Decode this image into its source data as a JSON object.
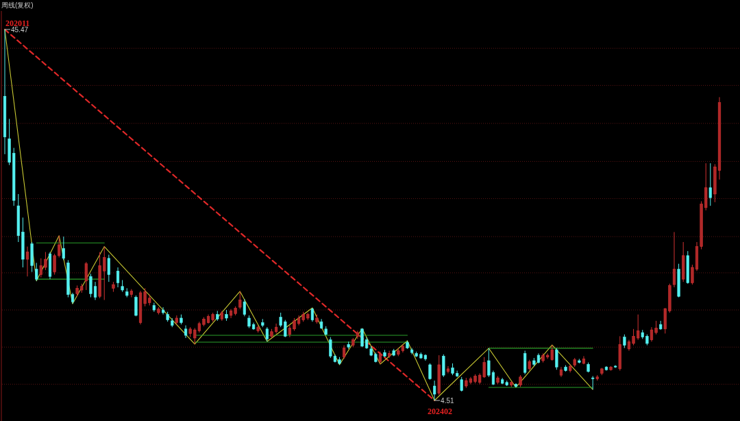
{
  "chart_data": {
    "type": "candlestick",
    "title": "周线(复权)",
    "grid": true,
    "yticks": [
      {
        "value": 6.3,
        "label": null
      },
      {
        "value": 10.4,
        "label": null
      },
      {
        "value": 14.5,
        "label": null
      },
      {
        "value": 18.6,
        "label": null
      },
      {
        "value": 22.6,
        "label": null
      },
      {
        "value": 26.8,
        "label": null
      },
      {
        "value": 30.9,
        "label": null
      },
      {
        "value": 35.1,
        "label": null
      },
      {
        "value": 39.3,
        "label": null
      },
      {
        "value": 43.4,
        "label": null
      }
    ],
    "categories": [
      null,
      null,
      null,
      null,
      null,
      null,
      null,
      null,
      null,
      null,
      null,
      null,
      null,
      null,
      null,
      null,
      null,
      null,
      null,
      null,
      null,
      null,
      null,
      null,
      null,
      null,
      null,
      null,
      null,
      null,
      null,
      null,
      null,
      null,
      null,
      null,
      null,
      null,
      null,
      null,
      null,
      null,
      null,
      null,
      null,
      null,
      null,
      null,
      null,
      null,
      null,
      null,
      null,
      null,
      null,
      null,
      null,
      null,
      null,
      null,
      null,
      null,
      null,
      null,
      null,
      null,
      null,
      null,
      null,
      null,
      null,
      null,
      null,
      null,
      null,
      null,
      null,
      null,
      null,
      null,
      null,
      null,
      null,
      null,
      null,
      null,
      null,
      null,
      null,
      null,
      null,
      null,
      null,
      null,
      null,
      null,
      null,
      null,
      null,
      null,
      null,
      null,
      null,
      null,
      null,
      null,
      null,
      null,
      null,
      null,
      null,
      null,
      null,
      null,
      null,
      null,
      null,
      null,
      null,
      null,
      null,
      null,
      null,
      null,
      null,
      null,
      null,
      null,
      null,
      null,
      null,
      null,
      null,
      null,
      null,
      null,
      null,
      null,
      null,
      null,
      null,
      null,
      null,
      null,
      null,
      null,
      null,
      null,
      null,
      null,
      null,
      null,
      null,
      null,
      null,
      null,
      null,
      null,
      null
    ],
    "ohlc": [
      [
        38.1,
        45.47,
        31.7,
        33.6
      ],
      [
        33.4,
        35.6,
        30.5,
        30.8
      ],
      [
        31.8,
        32.4,
        26.0,
        26.6
      ],
      [
        26.0,
        27.3,
        22.0,
        22.7
      ],
      [
        23.1,
        24.7,
        19.2,
        20.1
      ],
      [
        20.1,
        21.5,
        18.2,
        20.9
      ],
      [
        21.8,
        22.0,
        18.7,
        19.4
      ],
      [
        19.0,
        19.7,
        17.7,
        17.9
      ],
      [
        18.4,
        20.2,
        18.1,
        19.4
      ],
      [
        19.2,
        20.9,
        18.9,
        20.1
      ],
      [
        20.7,
        20.9,
        17.9,
        18.2
      ],
      [
        18.7,
        20.7,
        18.4,
        20.5
      ],
      [
        20.5,
        22.7,
        20.3,
        21.7
      ],
      [
        21.3,
        22.6,
        20.0,
        20.2
      ],
      [
        19.7,
        20.0,
        15.9,
        16.2
      ],
      [
        16.2,
        16.4,
        15.18,
        15.4
      ],
      [
        16.3,
        17.2,
        16.0,
        16.9
      ],
      [
        16.7,
        17.4,
        16.4,
        17.1
      ],
      [
        17.7,
        19.8,
        16.7,
        19.6
      ],
      [
        18.2,
        18.5,
        15.9,
        16.3
      ],
      [
        17.1,
        17.6,
        15.6,
        15.9
      ],
      [
        16.0,
        20.9,
        15.8,
        19.4
      ],
      [
        18.8,
        21.5,
        15.6,
        20.3
      ],
      [
        20.2,
        20.6,
        17.6,
        18.4
      ],
      [
        16.9,
        17.6,
        16.5,
        17.3
      ],
      [
        18.8,
        19.2,
        17.0,
        17.5
      ],
      [
        17.1,
        17.8,
        16.5,
        16.7
      ],
      [
        16.5,
        16.9,
        15.9,
        16.1
      ],
      [
        16.2,
        16.8,
        15.9,
        16.6
      ],
      [
        15.9,
        16.1,
        13.8,
        13.9
      ],
      [
        13.1,
        16.6,
        12.9,
        16.4
      ],
      [
        15.2,
        16.9,
        14.9,
        16.5
      ],
      [
        15.3,
        16.2,
        15.0,
        15.8
      ],
      [
        15.0,
        15.3,
        14.3,
        14.5
      ],
      [
        14.2,
        14.8,
        14.0,
        14.6
      ],
      [
        14.5,
        14.8,
        14.0,
        14.2
      ],
      [
        14.0,
        14.3,
        13.2,
        13.4
      ],
      [
        13.3,
        13.6,
        12.6,
        12.8
      ],
      [
        13.1,
        13.9,
        12.9,
        13.6
      ],
      [
        13.6,
        14.0,
        12.9,
        13.1
      ],
      [
        12.4,
        12.8,
        11.4,
        11.7
      ],
      [
        11.9,
        12.6,
        11.5,
        12.4
      ],
      [
        11.4,
        12.5,
        10.72,
        12.3
      ],
      [
        12.2,
        13.2,
        12.0,
        13.0
      ],
      [
        12.9,
        13.7,
        12.7,
        13.5
      ],
      [
        13.1,
        14.0,
        13.0,
        13.8
      ],
      [
        13.4,
        14.2,
        13.2,
        14.0
      ],
      [
        14.0,
        14.4,
        13.3,
        13.5
      ],
      [
        13.5,
        14.4,
        13.3,
        14.2
      ],
      [
        14.0,
        14.5,
        13.3,
        13.6
      ],
      [
        13.9,
        14.6,
        13.6,
        14.4
      ],
      [
        14.1,
        14.9,
        13.9,
        14.7
      ],
      [
        14.8,
        16.55,
        14.6,
        15.6
      ],
      [
        15.4,
        15.7,
        13.8,
        14.0
      ],
      [
        13.6,
        13.9,
        12.5,
        12.7
      ],
      [
        12.9,
        13.1,
        12.3,
        12.4
      ],
      [
        12.2,
        12.8,
        12.0,
        12.6
      ],
      [
        13.1,
        13.5,
        12.6,
        12.8
      ],
      [
        12.4,
        12.6,
        11.02,
        11.3
      ],
      [
        11.6,
        12.4,
        11.4,
        12.1
      ],
      [
        12.1,
        13.0,
        11.9,
        12.6
      ],
      [
        13.7,
        14.2,
        12.6,
        12.8
      ],
      [
        13.2,
        13.4,
        11.5,
        11.6
      ],
      [
        11.8,
        12.8,
        11.5,
        12.5
      ],
      [
        12.4,
        13.6,
        12.2,
        13.3
      ],
      [
        13.0,
        13.9,
        12.8,
        13.6
      ],
      [
        13.4,
        14.3,
        13.2,
        14.0
      ],
      [
        13.6,
        14.2,
        13.4,
        14.0
      ],
      [
        14.6,
        14.73,
        13.2,
        13.4
      ],
      [
        13.2,
        14.0,
        13.0,
        13.6
      ],
      [
        13.2,
        13.5,
        12.4,
        12.5
      ],
      [
        12.4,
        12.7,
        11.7,
        11.8
      ],
      [
        11.2,
        11.5,
        9.2,
        9.4
      ],
      [
        9.4,
        9.6,
        8.7,
        8.8
      ],
      [
        9.0,
        9.3,
        8.45,
        8.6
      ],
      [
        9.3,
        10.6,
        9.1,
        10.3
      ],
      [
        10.7,
        11.0,
        10.2,
        10.4
      ],
      [
        10.6,
        11.4,
        10.4,
        11.2
      ],
      [
        11.6,
        12.2,
        11.3,
        12.0
      ],
      [
        12.4,
        12.46,
        10.4,
        10.5
      ],
      [
        11.2,
        11.5,
        10.2,
        10.3
      ],
      [
        10.2,
        10.5,
        9.4,
        9.5
      ],
      [
        9.6,
        9.8,
        8.7,
        8.8
      ],
      [
        8.8,
        9.9,
        8.52,
        9.6
      ],
      [
        9.8,
        10.1,
        9.3,
        9.4
      ],
      [
        9.4,
        10.0,
        9.2,
        9.7
      ],
      [
        10.0,
        10.2,
        9.4,
        9.5
      ],
      [
        9.6,
        10.3,
        9.4,
        10.0
      ],
      [
        10.0,
        10.7,
        9.8,
        10.5
      ],
      [
        10.9,
        11.1,
        10.2,
        10.3
      ],
      [
        10.1,
        10.3,
        9.6,
        9.8
      ],
      [
        9.7,
        9.9,
        9.3,
        9.4
      ],
      [
        9.6,
        9.8,
        9.1,
        9.2
      ],
      [
        9.5,
        9.6,
        8.9,
        9.1
      ],
      [
        8.45,
        8.6,
        6.8,
        6.9
      ],
      [
        6.1,
        6.7,
        4.51,
        5.2
      ],
      [
        5.3,
        9.5,
        5.1,
        8.45
      ],
      [
        9.4,
        9.6,
        7.1,
        7.3
      ],
      [
        7.7,
        8.3,
        7.5,
        8.0
      ],
      [
        8.1,
        8.6,
        7.3,
        7.5
      ],
      [
        7.5,
        7.8,
        7.1,
        7.2
      ],
      [
        6.8,
        7.1,
        5.5,
        5.6
      ],
      [
        6.1,
        7.0,
        5.9,
        6.7
      ],
      [
        6.5,
        7.1,
        6.3,
        6.9
      ],
      [
        6.6,
        7.4,
        6.4,
        7.2
      ],
      [
        6.5,
        7.5,
        6.3,
        7.3
      ],
      [
        7.1,
        9.3,
        7.0,
        8.7
      ],
      [
        8.9,
        10.27,
        7.1,
        7.3
      ],
      [
        7.6,
        7.8,
        6.2,
        6.3
      ],
      [
        6.5,
        7.2,
        6.3,
        7.0
      ],
      [
        6.8,
        7.0,
        6.3,
        6.4
      ],
      [
        6.5,
        6.7,
        6.1,
        6.2
      ],
      [
        6.2,
        6.6,
        6.0,
        6.5
      ],
      [
        6.3,
        6.4,
        5.95,
        6.05
      ],
      [
        6.2,
        7.3,
        6.0,
        7.1
      ],
      [
        9.7,
        10.0,
        7.4,
        7.6
      ],
      [
        8.0,
        9.0,
        7.8,
        8.8
      ],
      [
        8.9,
        9.2,
        8.3,
        8.5
      ],
      [
        9.5,
        9.7,
        8.6,
        8.7
      ],
      [
        8.9,
        9.7,
        8.7,
        9.5
      ],
      [
        9.3,
        9.7,
        9.1,
        9.5
      ],
      [
        9.0,
        10.64,
        8.9,
        10.1
      ],
      [
        10.1,
        10.3,
        7.9,
        8.2
      ],
      [
        7.3,
        8.2,
        7.1,
        7.9
      ],
      [
        8.2,
        8.4,
        7.7,
        7.8
      ],
      [
        7.8,
        8.5,
        7.6,
        8.3
      ],
      [
        8.4,
        9.2,
        8.2,
        9.0
      ],
      [
        8.9,
        9.1,
        8.6,
        8.7
      ],
      [
        8.6,
        9.4,
        8.5,
        9.1
      ],
      [
        8.5,
        8.7,
        7.6,
        7.7
      ],
      [
        7.0,
        7.2,
        5.72,
        6.9
      ],
      [
        6.9,
        7.3,
        6.7,
        7.1
      ],
      [
        7.5,
        8.1,
        7.3,
        8.0
      ],
      [
        8.2,
        8.3,
        7.8,
        7.9
      ],
      [
        7.9,
        8.3,
        7.8,
        8.2
      ],
      [
        8.3,
        8.4,
        8.1,
        8.2
      ],
      [
        8.0,
        11.6,
        7.8,
        10.7
      ],
      [
        11.5,
        11.8,
        10.3,
        10.6
      ],
      [
        10.2,
        11.2,
        10.0,
        11.0
      ],
      [
        10.8,
        12.4,
        10.6,
        11.6
      ],
      [
        11.4,
        14.0,
        11.2,
        12.2
      ],
      [
        12.0,
        12.3,
        11.3,
        11.5
      ],
      [
        11.6,
        11.8,
        10.6,
        10.8
      ],
      [
        11.2,
        12.6,
        11.0,
        12.3
      ],
      [
        12.0,
        13.3,
        11.8,
        12.5
      ],
      [
        12.9,
        13.3,
        12.3,
        12.4
      ],
      [
        12.4,
        14.7,
        11.9,
        14.65
      ],
      [
        14.4,
        17.4,
        14.2,
        17.2
      ],
      [
        17.3,
        23.1,
        17.0,
        19.0
      ],
      [
        19.0,
        19.6,
        15.9,
        16.0
      ],
      [
        17.9,
        22.0,
        17.6,
        20.5
      ],
      [
        20.5,
        21.0,
        17.4,
        17.5
      ],
      [
        17.5,
        19.5,
        17.3,
        19.2
      ],
      [
        19.0,
        22.0,
        18.8,
        21.5
      ],
      [
        21.5,
        26.5,
        21.2,
        26.2
      ],
      [
        25.8,
        30.7,
        25.5,
        28.0
      ],
      [
        28.0,
        30.7,
        26.0,
        26.9
      ],
      [
        27.3,
        30.6,
        26.4,
        30.3
      ],
      [
        29.9,
        38.0,
        28.9,
        37.4
      ]
    ],
    "series": [
      {
        "type": "line",
        "color": "#e02828",
        "line_style": "dashed",
        "values": [
          45.47,
          null,
          null,
          null,
          null,
          null,
          null,
          null,
          null,
          null,
          null,
          null,
          null,
          null,
          null,
          null,
          null,
          null,
          null,
          null,
          null,
          null,
          null,
          null,
          null,
          null,
          null,
          null,
          null,
          null,
          null,
          null,
          null,
          null,
          null,
          null,
          null,
          null,
          null,
          null,
          null,
          null,
          null,
          null,
          null,
          null,
          null,
          null,
          null,
          null,
          null,
          null,
          null,
          null,
          null,
          null,
          null,
          null,
          null,
          null,
          null,
          null,
          null,
          null,
          null,
          null,
          null,
          null,
          null,
          null,
          null,
          null,
          null,
          null,
          null,
          null,
          null,
          null,
          null,
          null,
          null,
          null,
          null,
          null,
          null,
          null,
          null,
          null,
          null,
          null,
          null,
          null,
          null,
          null,
          null,
          4.51,
          null,
          null,
          null,
          null,
          null,
          null,
          null,
          null,
          null,
          null,
          null,
          null,
          null,
          null,
          null,
          null,
          null,
          null,
          null,
          null,
          null,
          null,
          null,
          null,
          null,
          null,
          null,
          null,
          null,
          null,
          null,
          null,
          null,
          null,
          null,
          null,
          null,
          null,
          null,
          null,
          null,
          null,
          null,
          null,
          null,
          null,
          null,
          null,
          null,
          null,
          null,
          null,
          null,
          null,
          null,
          null,
          null,
          null,
          null,
          null,
          null,
          null,
          null
        ]
      },
      {
        "type": "line",
        "color": "#c8c832",
        "line_style": "solid",
        "values": [
          45.47,
          null,
          null,
          null,
          null,
          null,
          null,
          17.7,
          null,
          null,
          null,
          null,
          22.7,
          null,
          null,
          15.18,
          null,
          null,
          null,
          null,
          null,
          null,
          21.5,
          null,
          null,
          null,
          null,
          null,
          null,
          null,
          null,
          null,
          null,
          null,
          null,
          null,
          null,
          null,
          null,
          null,
          null,
          null,
          10.72,
          null,
          null,
          null,
          null,
          null,
          null,
          null,
          null,
          null,
          16.55,
          null,
          null,
          null,
          null,
          null,
          11.02,
          null,
          null,
          null,
          null,
          null,
          null,
          null,
          null,
          null,
          14.73,
          null,
          null,
          null,
          null,
          null,
          8.45,
          null,
          null,
          null,
          null,
          12.46,
          null,
          null,
          null,
          8.52,
          null,
          null,
          null,
          null,
          null,
          11.1,
          null,
          null,
          null,
          null,
          null,
          4.51,
          null,
          null,
          null,
          null,
          null,
          null,
          null,
          null,
          null,
          null,
          null,
          10.27,
          null,
          null,
          null,
          null,
          null,
          5.95,
          null,
          null,
          null,
          null,
          null,
          null,
          null,
          10.64,
          null,
          null,
          null,
          null,
          null,
          null,
          null,
          null,
          5.72,
          null,
          null,
          null,
          null,
          null,
          null,
          null,
          null,
          null,
          null,
          null,
          null,
          null,
          null,
          null,
          null,
          null,
          null,
          null,
          null,
          null,
          null,
          null,
          null,
          null,
          null,
          null,
          null
        ]
      },
      {
        "type": "line",
        "color": "#2aa02a",
        "line_style": "solid",
        "values": [
          null,
          null,
          null,
          null,
          null,
          null,
          null,
          21.9,
          null,
          null,
          null,
          null,
          null,
          null,
          null,
          null,
          null,
          null,
          null,
          null,
          null,
          null,
          21.9,
          null,
          null,
          null,
          null,
          null,
          null,
          null,
          null,
          null,
          null,
          null,
          null,
          null,
          null,
          null,
          null,
          null,
          null,
          null,
          null,
          null,
          null,
          null,
          null,
          null,
          null,
          null,
          null,
          null,
          null,
          null,
          null,
          null,
          null,
          null,
          null,
          null,
          null,
          null,
          null,
          null,
          null,
          null,
          null,
          null,
          null,
          null,
          null,
          null,
          null,
          null,
          null,
          null,
          null,
          null,
          null,
          null,
          null,
          null,
          null,
          null,
          null,
          null,
          null,
          null,
          null,
          null,
          null,
          null,
          null,
          null,
          null,
          null,
          null,
          null,
          null,
          null,
          null,
          null,
          null,
          null,
          null,
          null,
          null,
          null,
          null,
          null,
          null,
          null,
          null,
          null,
          null,
          null,
          null,
          null,
          null,
          null,
          null,
          null,
          null,
          null,
          null,
          null,
          null,
          null,
          null,
          null,
          null,
          null,
          null,
          null,
          null,
          null,
          null,
          null,
          null,
          null,
          null,
          null,
          null,
          null,
          null,
          null,
          null,
          null,
          null,
          null,
          null,
          null,
          null,
          null,
          null,
          null,
          null,
          null,
          null
        ]
      },
      {
        "type": "line",
        "color": "#2aa02a",
        "line_style": "solid",
        "values": [
          null,
          null,
          null,
          null,
          null,
          null,
          null,
          17.9,
          null,
          null,
          null,
          null,
          null,
          null,
          null,
          null,
          null,
          null,
          null,
          null,
          null,
          null,
          17.9,
          null,
          null,
          null,
          null,
          null,
          null,
          null,
          null,
          null,
          null,
          null,
          null,
          null,
          null,
          null,
          null,
          null,
          null,
          null,
          null,
          null,
          null,
          null,
          null,
          null,
          null,
          null,
          null,
          null,
          null,
          null,
          null,
          null,
          null,
          null,
          null,
          null,
          null,
          null,
          null,
          null,
          null,
          null,
          null,
          null,
          null,
          null,
          null,
          null,
          null,
          null,
          null,
          null,
          null,
          null,
          null,
          null,
          null,
          null,
          null,
          null,
          null,
          null,
          null,
          null,
          null,
          null,
          null,
          null,
          null,
          null,
          null,
          null,
          null,
          null,
          null,
          null,
          null,
          null,
          null,
          null,
          null,
          null,
          null,
          null,
          null,
          null,
          null,
          null,
          null,
          null,
          null,
          null,
          null,
          null,
          null,
          null,
          null,
          null,
          null,
          null,
          null,
          null,
          null,
          null,
          null,
          null,
          null,
          null,
          null,
          null,
          null,
          null,
          null,
          null,
          null,
          null,
          null,
          null,
          null,
          null,
          null,
          null,
          null,
          null,
          null,
          null,
          null,
          null,
          null,
          null,
          null,
          null,
          null,
          null,
          null
        ]
      },
      {
        "type": "line",
        "color": "#2aa02a",
        "line_style": "solid",
        "values": [
          null,
          null,
          null,
          null,
          null,
          null,
          null,
          null,
          null,
          null,
          null,
          null,
          null,
          null,
          null,
          null,
          null,
          null,
          null,
          null,
          null,
          null,
          null,
          null,
          null,
          null,
          null,
          null,
          null,
          null,
          null,
          null,
          null,
          null,
          null,
          null,
          null,
          null,
          null,
          null,
          null,
          null,
          11.7,
          null,
          null,
          null,
          null,
          null,
          null,
          null,
          null,
          null,
          null,
          null,
          null,
          null,
          null,
          null,
          null,
          null,
          null,
          null,
          null,
          null,
          null,
          null,
          null,
          null,
          null,
          null,
          null,
          null,
          null,
          null,
          null,
          null,
          null,
          null,
          null,
          null,
          null,
          null,
          null,
          null,
          null,
          null,
          null,
          null,
          null,
          11.7,
          null,
          null,
          null,
          null,
          null,
          null,
          null,
          null,
          null,
          null,
          null,
          null,
          null,
          null,
          null,
          null,
          null,
          null,
          null,
          null,
          null,
          null,
          null,
          null,
          null,
          null,
          null,
          null,
          null,
          null,
          null,
          null,
          null,
          null,
          null,
          null,
          null,
          null,
          null,
          null,
          null,
          null,
          null,
          null,
          null,
          null,
          null,
          null,
          null,
          null,
          null,
          null,
          null,
          null,
          null,
          null,
          null,
          null,
          null,
          null,
          null,
          null,
          null,
          null,
          null,
          null,
          null,
          null,
          null
        ]
      },
      {
        "type": "line",
        "color": "#2aa02a",
        "line_style": "solid",
        "values": [
          null,
          null,
          null,
          null,
          null,
          null,
          null,
          null,
          null,
          null,
          null,
          null,
          null,
          null,
          null,
          null,
          null,
          null,
          null,
          null,
          null,
          null,
          null,
          null,
          null,
          null,
          null,
          null,
          null,
          null,
          null,
          null,
          null,
          null,
          null,
          null,
          null,
          null,
          null,
          null,
          null,
          null,
          10.95,
          null,
          null,
          null,
          null,
          null,
          null,
          null,
          null,
          null,
          null,
          null,
          null,
          null,
          null,
          null,
          null,
          null,
          null,
          null,
          null,
          null,
          null,
          null,
          null,
          null,
          null,
          null,
          null,
          null,
          null,
          null,
          null,
          null,
          null,
          null,
          null,
          null,
          null,
          null,
          null,
          null,
          null,
          null,
          null,
          null,
          null,
          10.95,
          null,
          null,
          null,
          null,
          null,
          null,
          null,
          null,
          null,
          null,
          null,
          null,
          null,
          null,
          null,
          null,
          null,
          null,
          null,
          null,
          null,
          null,
          null,
          null,
          null,
          null,
          null,
          null,
          null,
          null,
          null,
          null,
          null,
          null,
          null,
          null,
          null,
          null,
          null,
          null,
          null,
          null,
          null,
          null,
          null,
          null,
          null,
          null,
          null,
          null,
          null,
          null,
          null,
          null,
          null,
          null,
          null,
          null,
          null,
          null,
          null,
          null,
          null,
          null,
          null,
          null,
          null,
          null,
          null
        ]
      },
      {
        "type": "line",
        "color": "#2aa02a",
        "line_style": "solid",
        "values": [
          null,
          null,
          null,
          null,
          null,
          null,
          null,
          null,
          null,
          null,
          null,
          null,
          null,
          null,
          null,
          null,
          null,
          null,
          null,
          null,
          null,
          null,
          null,
          null,
          null,
          null,
          null,
          null,
          null,
          null,
          null,
          null,
          null,
          null,
          null,
          null,
          null,
          null,
          null,
          null,
          null,
          null,
          null,
          null,
          null,
          null,
          null,
          null,
          null,
          null,
          null,
          null,
          null,
          null,
          null,
          null,
          null,
          null,
          null,
          null,
          null,
          null,
          null,
          null,
          null,
          null,
          null,
          null,
          null,
          null,
          null,
          null,
          null,
          null,
          null,
          null,
          null,
          null,
          null,
          null,
          null,
          null,
          null,
          null,
          null,
          null,
          null,
          null,
          null,
          null,
          null,
          null,
          null,
          null,
          null,
          null,
          null,
          null,
          null,
          null,
          null,
          null,
          null,
          null,
          null,
          null,
          null,
          10.27,
          null,
          null,
          null,
          null,
          null,
          null,
          null,
          null,
          null,
          null,
          null,
          null,
          null,
          null,
          null,
          null,
          null,
          null,
          null,
          null,
          null,
          null,
          10.27,
          null,
          null,
          null,
          null,
          null,
          null,
          null,
          null,
          null,
          null,
          null,
          null,
          null,
          null,
          null,
          null,
          null,
          null,
          null,
          null,
          null,
          null,
          null,
          null,
          null,
          null,
          null,
          null
        ]
      },
      {
        "type": "line",
        "color": "#2aa02a",
        "line_style": "solid",
        "values": [
          null,
          null,
          null,
          null,
          null,
          null,
          null,
          null,
          null,
          null,
          null,
          null,
          null,
          null,
          null,
          null,
          null,
          null,
          null,
          null,
          null,
          null,
          null,
          null,
          null,
          null,
          null,
          null,
          null,
          null,
          null,
          null,
          null,
          null,
          null,
          null,
          null,
          null,
          null,
          null,
          null,
          null,
          null,
          null,
          null,
          null,
          null,
          null,
          null,
          null,
          null,
          null,
          null,
          null,
          null,
          null,
          null,
          null,
          null,
          null,
          null,
          null,
          null,
          null,
          null,
          null,
          null,
          null,
          null,
          null,
          null,
          null,
          null,
          null,
          null,
          null,
          null,
          null,
          null,
          null,
          null,
          null,
          null,
          null,
          null,
          null,
          null,
          null,
          null,
          null,
          null,
          null,
          null,
          null,
          null,
          null,
          null,
          null,
          null,
          null,
          null,
          null,
          null,
          null,
          null,
          null,
          null,
          5.95,
          null,
          null,
          null,
          null,
          null,
          null,
          null,
          null,
          null,
          null,
          null,
          null,
          null,
          null,
          null,
          null,
          null,
          null,
          null,
          null,
          null,
          null,
          5.95,
          null,
          null,
          null,
          null,
          null,
          null,
          null,
          null,
          null,
          null,
          null,
          null,
          null,
          null,
          null,
          null,
          null,
          null,
          null,
          null,
          null,
          null,
          null,
          null,
          null,
          null,
          null,
          null
        ]
      }
    ],
    "annotations": [
      "202011",
      "45.47",
      "4.51",
      "202402"
    ]
  }
}
